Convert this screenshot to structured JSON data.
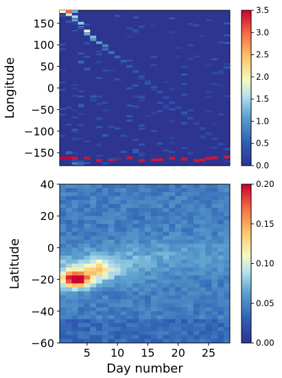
{
  "chart_data": [
    {
      "type": "heatmap",
      "ylabel": "Longitude",
      "xlabel": "",
      "xlim": [
        0.5,
        28.5
      ],
      "ylim": [
        -180,
        180
      ],
      "yticks": [
        150,
        100,
        50,
        0,
        -50,
        -100,
        -150
      ],
      "ytick_labels": [
        "150",
        "100",
        "50",
        "0",
        "−50",
        "−100",
        "−150"
      ],
      "colorbar": {
        "min": 0.0,
        "max": 3.5,
        "ticks": [
          0.0,
          0.5,
          1.0,
          1.5,
          2.0,
          2.5,
          3.0,
          3.5
        ],
        "tick_labels": [
          "0.0",
          "0.5",
          "1.0",
          "1.5",
          "2.0",
          "2.5",
          "3.0",
          "3.5"
        ]
      },
      "background_value": 0.12,
      "cells": [
        {
          "day": 1,
          "value": 1.9,
          "y": 177,
          "w": 1
        },
        {
          "day": 2,
          "value": 3.0,
          "y": 177,
          "w": 1
        },
        {
          "day": 3,
          "value": 1.2,
          "y": 177,
          "w": 1
        },
        {
          "day": 2,
          "value": 1.7,
          "y": 170,
          "w": 1
        },
        {
          "day": 3,
          "value": 1.5,
          "y": 165,
          "w": 1
        },
        {
          "day": 3,
          "value": 1.1,
          "y": 157,
          "w": 1
        },
        {
          "day": 4,
          "value": 1.4,
          "y": 150,
          "w": 1
        },
        {
          "day": 4,
          "value": 1.2,
          "y": 140,
          "w": 1
        },
        {
          "day": 5,
          "value": 1.8,
          "y": 132,
          "w": 1
        },
        {
          "day": 5,
          "value": 1.2,
          "y": 125,
          "w": 1
        },
        {
          "day": 6,
          "value": 1.3,
          "y": 118,
          "w": 1
        },
        {
          "day": 6,
          "value": 1.0,
          "y": 112,
          "w": 1
        },
        {
          "day": 7,
          "value": 1.1,
          "y": 105,
          "w": 1
        },
        {
          "day": 8,
          "value": 0.9,
          "y": 98,
          "w": 1
        },
        {
          "day": 8,
          "value": 0.7,
          "y": 90,
          "w": 1
        },
        {
          "day": 9,
          "value": 0.7,
          "y": 82,
          "w": 1
        },
        {
          "day": 10,
          "value": 0.6,
          "y": 72,
          "w": 1
        },
        {
          "day": 11,
          "value": 0.5,
          "y": 62,
          "w": 1
        },
        {
          "day": 12,
          "value": 0.45,
          "y": 50,
          "w": 1
        },
        {
          "day": 13,
          "value": 0.4,
          "y": 38,
          "w": 1
        },
        {
          "day": 14,
          "value": 0.4,
          "y": 26,
          "w": 1
        },
        {
          "day": 15,
          "value": 0.35,
          "y": 14,
          "w": 1
        },
        {
          "day": 16,
          "value": 0.35,
          "y": 2,
          "w": 1
        },
        {
          "day": 17,
          "value": 0.35,
          "y": -10,
          "w": 1
        },
        {
          "day": 18,
          "value": 0.3,
          "y": -22,
          "w": 1
        },
        {
          "day": 19,
          "value": 0.3,
          "y": -34,
          "w": 1
        },
        {
          "day": 20,
          "value": 0.3,
          "y": -46,
          "w": 1
        },
        {
          "day": 21,
          "value": 0.3,
          "y": -58,
          "w": 1
        },
        {
          "day": 22,
          "value": 0.3,
          "y": -70,
          "w": 1
        },
        {
          "day": 23,
          "value": 0.28,
          "y": -82,
          "w": 1
        },
        {
          "day": 24,
          "value": 0.28,
          "y": -94,
          "w": 1
        },
        {
          "day": 25,
          "value": 0.28,
          "y": -106,
          "w": 1
        },
        {
          "day": 26,
          "value": 0.28,
          "y": -118,
          "w": 1
        },
        {
          "day": 27,
          "value": 0.28,
          "y": -130,
          "w": 1
        },
        {
          "day": 28,
          "value": 0.28,
          "y": -142,
          "w": 1
        },
        {
          "day": 4,
          "value": 0.6,
          "y": 60,
          "w": 1
        },
        {
          "day": 5,
          "value": 0.5,
          "y": 44,
          "w": 1
        },
        {
          "day": 6,
          "value": 0.45,
          "y": -20,
          "w": 1
        },
        {
          "day": 3,
          "value": 0.5,
          "y": -98,
          "w": 1
        },
        {
          "day": 8,
          "value": 0.45,
          "y": -110,
          "w": 1
        },
        {
          "day": 2,
          "value": 0.6,
          "y": -150,
          "w": 1
        },
        {
          "day": 1,
          "value": 3.5,
          "y": -163,
          "w": 1
        },
        {
          "day": 2,
          "value": 3.5,
          "y": -162,
          "w": 1
        },
        {
          "day": 3,
          "value": 3.4,
          "y": -162,
          "w": 1
        },
        {
          "day": 5,
          "value": 3.4,
          "y": -163,
          "w": 1
        },
        {
          "day": 7,
          "value": 3.4,
          "y": -168,
          "w": 1
        },
        {
          "day": 9,
          "value": 3.4,
          "y": -167,
          "w": 1
        },
        {
          "day": 10,
          "value": 3.4,
          "y": -165,
          "w": 1
        },
        {
          "day": 12,
          "value": 3.4,
          "y": -162,
          "w": 1
        },
        {
          "day": 14,
          "value": 3.4,
          "y": -168,
          "w": 1
        },
        {
          "day": 16,
          "value": 3.4,
          "y": -167,
          "w": 1
        },
        {
          "day": 17,
          "value": 3.4,
          "y": -166,
          "w": 1
        },
        {
          "day": 19,
          "value": 3.4,
          "y": -163,
          "w": 1
        },
        {
          "day": 21,
          "value": 3.4,
          "y": -165,
          "w": 1
        },
        {
          "day": 23,
          "value": 3.4,
          "y": -168,
          "w": 1
        },
        {
          "day": 24,
          "value": 3.4,
          "y": -167,
          "w": 1
        },
        {
          "day": 25,
          "value": 3.4,
          "y": -163,
          "w": 1
        },
        {
          "day": 26,
          "value": 3.4,
          "y": -162,
          "w": 1
        },
        {
          "day": 28,
          "value": 3.4,
          "y": -160,
          "w": 1
        },
        {
          "day": 3,
          "value": 0.8,
          "y": -175,
          "w": 1
        },
        {
          "day": 4,
          "value": 0.6,
          "y": -176,
          "w": 1
        }
      ]
    },
    {
      "type": "heatmap",
      "ylabel": "Latitude",
      "xlabel": "Day number",
      "xlim": [
        0.5,
        28.5
      ],
      "ylim": [
        -60,
        40
      ],
      "xticks": [
        5,
        10,
        15,
        20,
        25
      ],
      "xtick_labels": [
        "5",
        "10",
        "15",
        "20",
        "25"
      ],
      "yticks": [
        40,
        20,
        0,
        -20,
        -40,
        -60
      ],
      "ytick_labels": [
        "40",
        "20",
        "0",
        "−20",
        "−40",
        "−60"
      ],
      "colorbar": {
        "min": 0.0,
        "max": 0.2,
        "ticks": [
          0.0,
          0.05,
          0.1,
          0.15,
          0.2
        ],
        "tick_labels": [
          "0.00",
          "0.05",
          "0.10",
          "0.15",
          "0.20"
        ]
      },
      "background_value": 0.04,
      "hotspot": {
        "day": 3,
        "latitude": -20,
        "value": 0.2
      }
    }
  ]
}
